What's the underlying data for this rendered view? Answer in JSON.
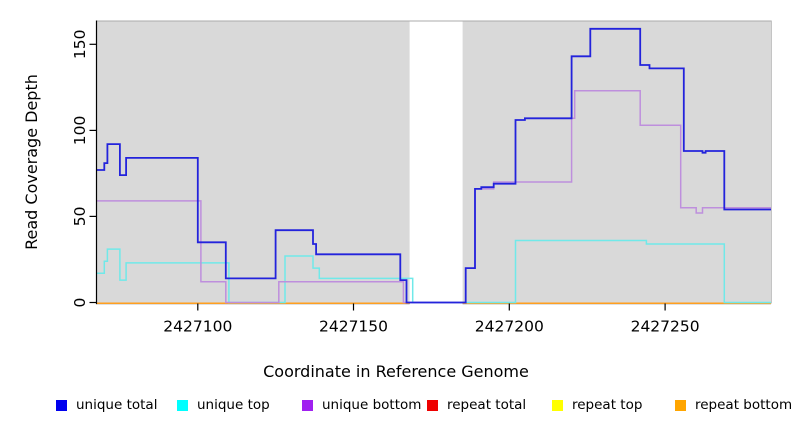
{
  "figure": {
    "background": "#FFFFFF",
    "plot_background": "#D9D9D9",
    "no_data_fill": "#FFFFFF",
    "axis_color": "#000000",
    "border_color": "#ABABAB"
  },
  "chart_data": {
    "type": "line",
    "subtype": "step",
    "title": "",
    "xlabel": "Coordinate in Reference Genome",
    "ylabel": "Read Coverage Depth",
    "xlim": [
      2427067.5,
      2427284
    ],
    "ylim": [
      0,
      164
    ],
    "xticks": [
      2427100,
      2427150,
      2427200,
      2427250
    ],
    "yticks": [
      0,
      50,
      100,
      150
    ],
    "grid": false,
    "legend_position": "bottom",
    "no_data_region": {
      "x_start": 2427168,
      "x_end": 2427185
    },
    "series": [
      {
        "name": "unique total",
        "line_color": "#2323DC",
        "legend_color": "#0000EE",
        "points": [
          [
            2427067.5,
            77
          ],
          [
            2427070,
            81
          ],
          [
            2427071,
            92
          ],
          [
            2427075,
            74
          ],
          [
            2427077,
            84
          ],
          [
            2427100,
            35
          ],
          [
            2427109,
            14
          ],
          [
            2427125,
            42
          ],
          [
            2427137,
            34
          ],
          [
            2427138,
            28
          ],
          [
            2427165,
            13
          ],
          [
            2427167,
            0
          ],
          [
            2427186,
            20
          ],
          [
            2427189,
            66
          ],
          [
            2427191,
            67
          ],
          [
            2427195,
            69
          ],
          [
            2427202,
            106
          ],
          [
            2427205,
            107
          ],
          [
            2427220,
            143
          ],
          [
            2427226,
            159
          ],
          [
            2427242,
            138
          ],
          [
            2427245,
            136
          ],
          [
            2427256,
            88
          ],
          [
            2427262,
            87
          ],
          [
            2427263,
            88
          ],
          [
            2427269,
            54
          ],
          [
            2427284,
            54
          ]
        ]
      },
      {
        "name": "unique top",
        "line_color": "#70E9E9",
        "legend_color": "#00FFFF",
        "points": [
          [
            2427067.5,
            17
          ],
          [
            2427070,
            24
          ],
          [
            2427071,
            31
          ],
          [
            2427075,
            13
          ],
          [
            2427077,
            23
          ],
          [
            2427110,
            0
          ],
          [
            2427128,
            27
          ],
          [
            2427137,
            20
          ],
          [
            2427139,
            14
          ],
          [
            2427169,
            0
          ],
          [
            2427202,
            36
          ],
          [
            2427244,
            34
          ],
          [
            2427269,
            0
          ],
          [
            2427284,
            0
          ]
        ]
      },
      {
        "name": "unique bottom",
        "line_color": "#BE8FDD",
        "legend_color": "#A020F0",
        "points": [
          [
            2427067.5,
            59
          ],
          [
            2427101,
            12
          ],
          [
            2427109,
            0
          ],
          [
            2427126,
            12
          ],
          [
            2427166,
            0
          ],
          [
            2427186,
            20
          ],
          [
            2427189,
            66
          ],
          [
            2427195,
            70
          ],
          [
            2427220,
            107
          ],
          [
            2427221,
            123
          ],
          [
            2427242,
            103
          ],
          [
            2427255,
            55
          ],
          [
            2427260,
            52
          ],
          [
            2427262,
            55
          ],
          [
            2427284,
            55
          ]
        ]
      },
      {
        "name": "repeat total",
        "line_color": "#DD0000",
        "legend_color": "#EE0000",
        "break_in_gap": true,
        "points": [
          [
            2427067.5,
            0
          ],
          [
            2427284,
            0
          ]
        ]
      },
      {
        "name": "repeat top",
        "line_color": "#EBEB00",
        "legend_color": "#FFFF00",
        "break_in_gap": true,
        "points": [
          [
            2427067.5,
            0
          ],
          [
            2427284,
            0
          ]
        ]
      },
      {
        "name": "repeat bottom",
        "line_color": "#FF9F20",
        "legend_color": "#FFA500",
        "break_in_gap": true,
        "points": [
          [
            2427067.5,
            0
          ],
          [
            2427284,
            0
          ]
        ]
      }
    ]
  }
}
